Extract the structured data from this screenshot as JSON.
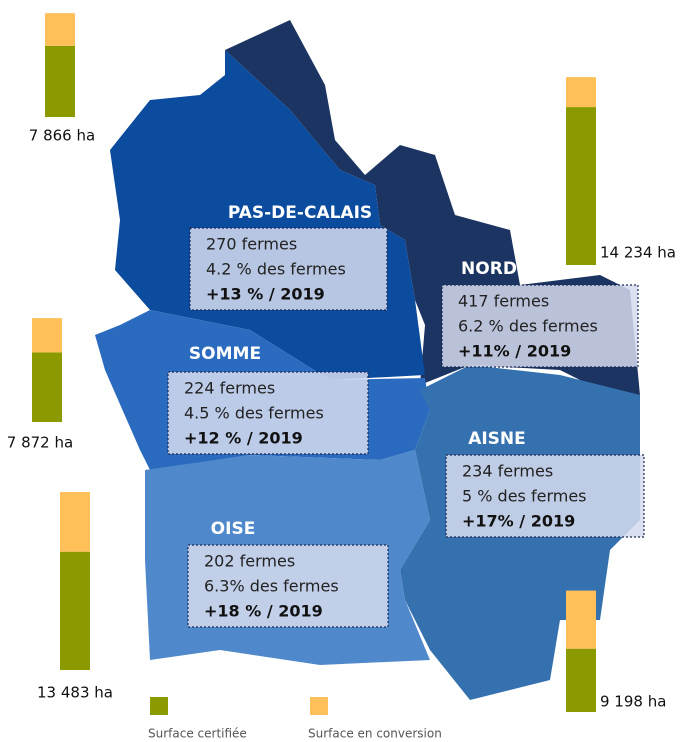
{
  "departments": [
    {
      "name": "PAS-DE-CALAIS",
      "farms": "270 fermes",
      "share": "4.2 % des fermes",
      "growth": "+13 % / 2019",
      "area_label": "7 866 ha",
      "certified": 5396,
      "conversion": 2470
    },
    {
      "name": "NORD",
      "farms": "417 fermes",
      "share": "6.2 % des fermes",
      "growth": "+11% / 2019",
      "area_label": "14 234 ha",
      "certified": 11964,
      "conversion": 2270
    },
    {
      "name": "SOMME",
      "farms": "224 fermes",
      "share": "4.5 % des fermes",
      "growth": "+12 % / 2019",
      "area_label": "7 872 ha",
      "certified": 5272,
      "conversion": 2600
    },
    {
      "name": "AISNE",
      "farms": "234 fermes",
      "share": "5 % des fermes",
      "growth": "+17% / 2019",
      "area_label": "9 198 ha",
      "certified": 4798,
      "conversion": 4400
    },
    {
      "name": "OISE",
      "farms": "202 fermes",
      "share": "6.3% des fermes",
      "growth": "+18 % / 2019",
      "area_label": "13 483 ha",
      "certified": 8963,
      "conversion": 4520
    }
  ],
  "legend": [
    {
      "label": "Surface certifiée",
      "color": "#8a9a00"
    },
    {
      "label": "Surface en conversion",
      "color": "#ffc05a"
    }
  ]
}
